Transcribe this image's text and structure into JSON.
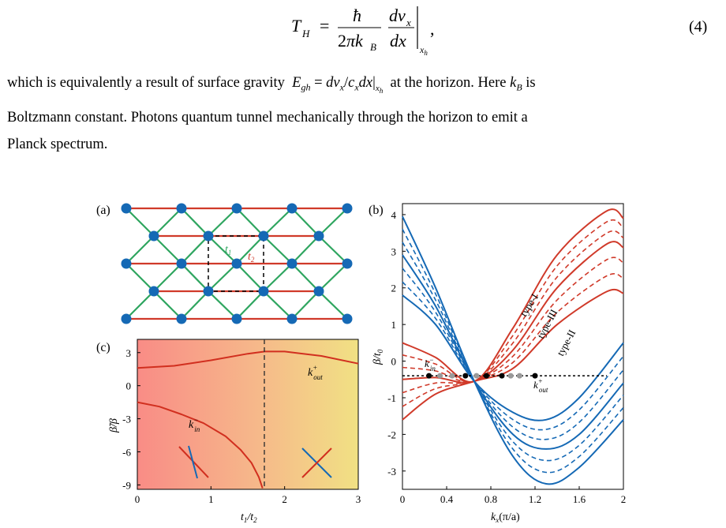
{
  "equation": {
    "number": "(4)"
  },
  "paragraph": {
    "line1_a": "which is equivalently a result of surface gravity",
    "line1_b": "at the horizon. Here",
    "line1_c": "is",
    "line2": "Boltzmann constant. Photons quantum tunnel mechanically through the horizon to emit a",
    "line3": "Planck spectrum."
  },
  "panel_a": {
    "label": "(a)",
    "t1_label": "t",
    "t1_sub": "1",
    "t2_label": "t",
    "t2_sub": "2",
    "colors": {
      "node": "#1569b5",
      "t1_bond": "#2ea55f",
      "t2_bond": "#d03a2a",
      "cell": "#000000"
    }
  },
  "panel_b": {
    "label": "(b)",
    "xlabel": "k",
    "xlabel_sub": "x",
    "xlabel_unit": "(π/a)",
    "ylabel": "β/t",
    "ylabel_sub": "0",
    "xticks": [
      "0",
      "0.4",
      "0.8",
      "1.2",
      "1.6",
      "2"
    ],
    "yticks": [
      "4",
      "3",
      "2",
      "1",
      "0",
      "-1",
      "-2",
      "-3"
    ],
    "annotations": [
      "type-I",
      "type-III",
      "type-II"
    ],
    "k_in": "k",
    "k_in_sup": "−",
    "k_in_sub": "in",
    "k_out": "k",
    "k_out_sup": "+",
    "k_out_sub": "out",
    "colors": {
      "upper": "#d03a2a",
      "lower": "#1569b5"
    }
  },
  "panel_c": {
    "label": "(c)",
    "xlabel": "t",
    "xlabel_sub1": "1",
    "xlabel_mid": "/t",
    "xlabel_sub2": "2",
    "ylabel": "β̃/β",
    "xticks": [
      "0",
      "1",
      "2",
      "3"
    ],
    "yticks": [
      "3",
      "0",
      "-3",
      "-6",
      "-9"
    ],
    "k_in": "k",
    "k_in_sup": "−",
    "k_in_sub": "in",
    "k_out": "k",
    "k_out_sup": "+",
    "k_out_sub": "out",
    "colors": {
      "bg_left": "#f98c86",
      "bg_right": "#f1e184",
      "curve": "#d12f1f"
    }
  },
  "chart_data": [
    {
      "type": "line",
      "panel": "(b)",
      "xlabel": "k_x(π/a)",
      "ylabel": "β/t_0",
      "xlim": [
        0,
        2
      ],
      "ylim": [
        -3.5,
        4.3
      ],
      "series": [
        {
          "branch": "upper",
          "style": "solid",
          "x": [
            0,
            0.3,
            0.65,
            1.0,
            1.4,
            1.85,
            2.0
          ],
          "values": [
            0.5,
            0.1,
            -0.55,
            0.9,
            2.9,
            4.1,
            3.9
          ]
        },
        {
          "branch": "upper",
          "style": "solid",
          "x": [
            0,
            0.3,
            0.65,
            1.0,
            1.4,
            1.85,
            2.0
          ],
          "values": [
            -0.5,
            -0.45,
            -0.55,
            0.3,
            2.0,
            3.2,
            3.1
          ]
        },
        {
          "branch": "upper",
          "style": "solid",
          "x": [
            0,
            0.3,
            0.65,
            1.0,
            1.4,
            1.85,
            2.0
          ],
          "values": [
            -1.6,
            -0.9,
            -0.55,
            -0.2,
            1.0,
            1.9,
            1.85
          ]
        },
        {
          "branch": "lower",
          "style": "solid",
          "x": [
            0,
            0.3,
            0.65,
            1.0,
            1.3,
            1.6,
            2.0
          ],
          "values": [
            3.95,
            2.0,
            -0.55,
            -2.6,
            -3.35,
            -2.9,
            -1.6
          ]
        },
        {
          "branch": "lower",
          "style": "solid",
          "x": [
            0,
            0.3,
            0.65,
            1.0,
            1.3,
            1.6,
            2.0
          ],
          "values": [
            2.9,
            1.5,
            -0.55,
            -2.0,
            -2.4,
            -2.0,
            -0.6
          ]
        },
        {
          "branch": "lower",
          "style": "solid",
          "x": [
            0,
            0.3,
            0.65,
            1.0,
            1.3,
            1.6,
            2.0
          ],
          "values": [
            1.8,
            1.0,
            -0.55,
            -1.4,
            -1.6,
            -1.0,
            0.5
          ]
        }
      ],
      "markers": {
        "y": -0.4,
        "x": [
          0.24,
          0.57,
          0.76,
          0.9,
          1.2
        ]
      }
    },
    {
      "type": "line",
      "panel": "(c)",
      "xlabel": "t_1/t_2",
      "ylabel": "β̃/β",
      "xlim": [
        0,
        3
      ],
      "ylim": [
        -9.4,
        4.2
      ],
      "vline_x": 1.73,
      "series": [
        {
          "label": "k+out",
          "x": [
            0,
            0.5,
            1.0,
            1.5,
            1.73,
            2.0,
            2.5,
            3.0
          ],
          "values": [
            1.6,
            1.8,
            2.3,
            2.9,
            3.1,
            3.1,
            2.7,
            2.0
          ]
        },
        {
          "label": "k−in",
          "x": [
            0,
            0.3,
            0.6,
            0.9,
            1.2,
            1.4,
            1.55,
            1.65,
            1.7
          ],
          "values": [
            -1.5,
            -1.9,
            -2.6,
            -3.4,
            -4.6,
            -5.8,
            -7.0,
            -8.3,
            -9.3
          ]
        }
      ]
    }
  ]
}
